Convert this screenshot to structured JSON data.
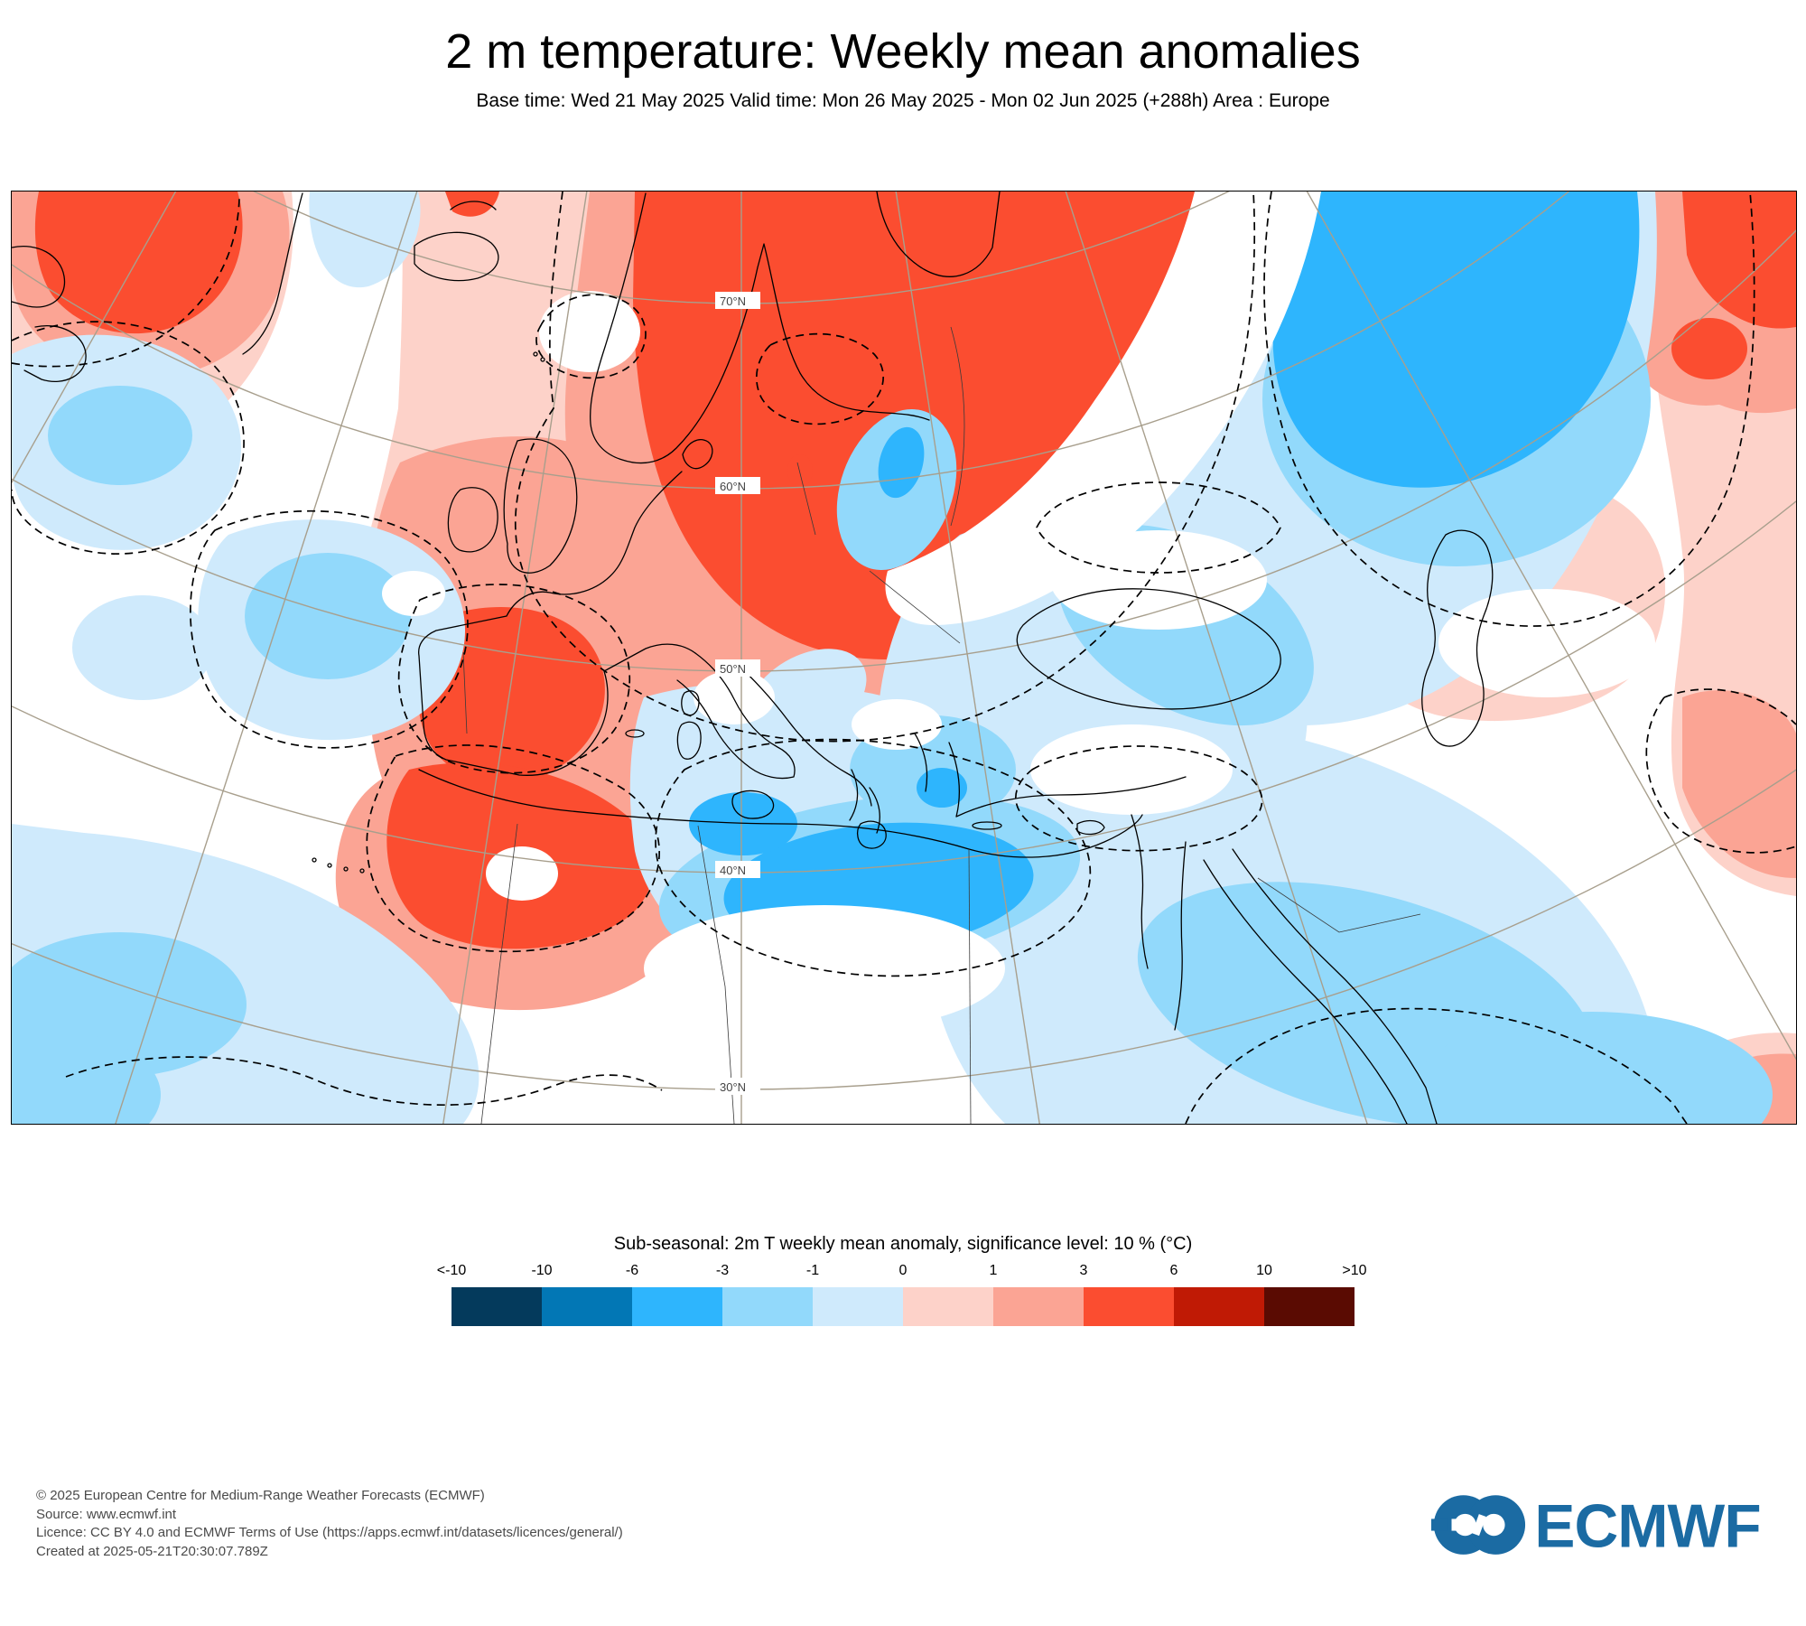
{
  "header": {
    "title": "2 m temperature: Weekly mean anomalies",
    "subtitle": "Base time: Wed 21 May 2025 Valid time: Mon 26 May 2025 - Mon 02 Jun 2025 (+288h) Area : Europe"
  },
  "map": {
    "graticule_labels": [
      "70°N",
      "60°N",
      "50°N",
      "40°N",
      "30°N"
    ]
  },
  "legend": {
    "title": "Sub-seasonal: 2m T weekly mean anomaly, significance level: 10 % (°C)",
    "tick_labels": [
      "<-10",
      "-10",
      "-6",
      "-3",
      "-1",
      "0",
      "1",
      "3",
      "6",
      "10",
      ">10"
    ],
    "colors": [
      "#043a5c",
      "#0277b5",
      "#2eb5fd",
      "#92d9fb",
      "#cfeafc",
      "#fdd2c9",
      "#fba494",
      "#fb4d30",
      "#c01a05",
      "#5a0b02"
    ],
    "bins": [
      "<-10",
      "-10 to -6",
      "-6 to -3",
      "-3 to -1",
      "-1 to 0",
      "0 to 1",
      "1 to 3",
      "3 to 6",
      "6 to 10",
      ">10"
    ]
  },
  "footer": {
    "lines": [
      "© 2025 European Centre for Medium-Range Weather Forecasts (ECMWF)",
      "Source: www.ecmwf.int",
      "Licence: CC BY 4.0 and ECMWF Terms of Use (https://apps.ecmwf.int/datasets/licences/general/)",
      "Created at 2025-05-21T20:30:07.789Z"
    ]
  },
  "logo": {
    "text": "ECMWF",
    "color": "#1b6ba3"
  }
}
